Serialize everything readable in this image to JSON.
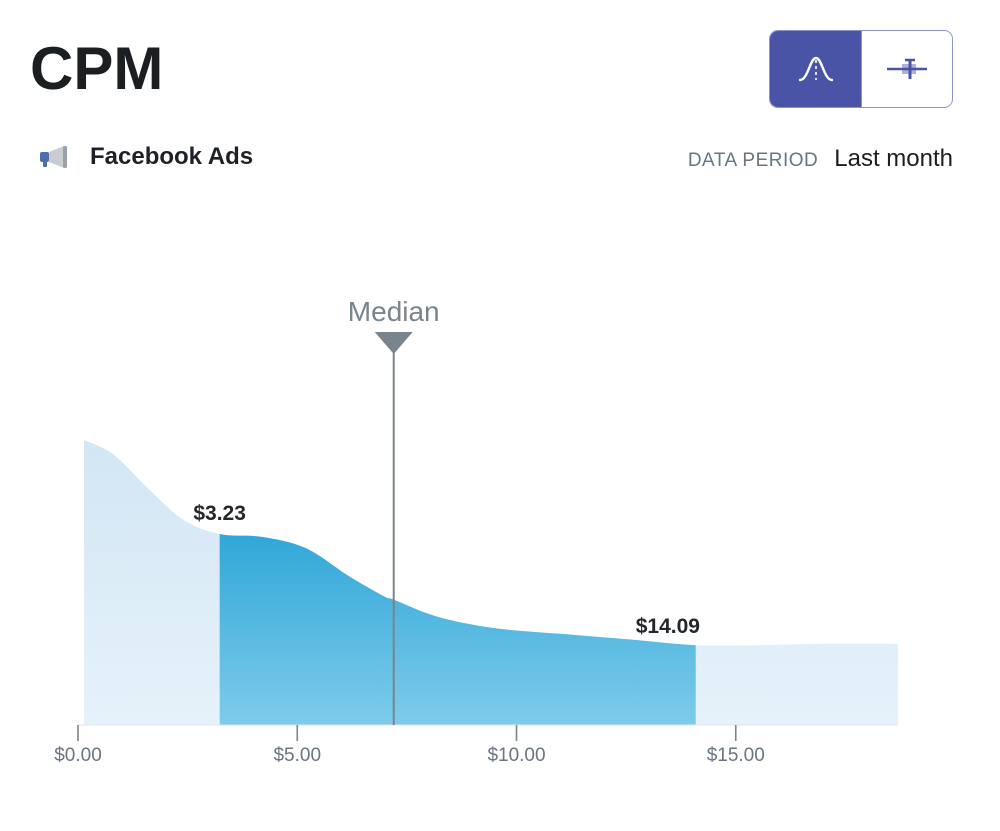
{
  "header": {
    "title": "CPM",
    "view_toggle": {
      "distribution_icon": "distribution-curve-icon",
      "range_icon": "range-plot-icon",
      "active": "distribution"
    }
  },
  "source": {
    "icon": "megaphone-icon",
    "label": "Facebook Ads"
  },
  "data_period": {
    "label": "DATA PERIOD",
    "value": "Last month"
  },
  "colors": {
    "accent": "#4a54a6",
    "band_top": "#0a96cf",
    "band_bottom": "#7ecbea",
    "tail_fill": "#d8eaf6",
    "median_line": "#7a848c"
  },
  "chart_data": {
    "type": "area",
    "title": "",
    "xlabel": "",
    "ylabel": "",
    "x_unit": "$",
    "xlim": [
      0,
      18.7
    ],
    "x_ticks": [
      {
        "value": 0,
        "label": "$0.00"
      },
      {
        "value": 5,
        "label": "$5.00"
      },
      {
        "value": 10,
        "label": "$10.00"
      },
      {
        "value": 15,
        "label": "$15.00"
      }
    ],
    "distribution": {
      "x": [
        0,
        0.8,
        1.6,
        2.4,
        3.23,
        4.2,
        5.2,
        6.2,
        7.0,
        7.2,
        8.2,
        9.5,
        11.0,
        12.6,
        14.09,
        15.5,
        17.0,
        18.7
      ],
      "density": [
        1.0,
        0.95,
        0.83,
        0.72,
        0.67,
        0.66,
        0.62,
        0.52,
        0.45,
        0.44,
        0.38,
        0.34,
        0.32,
        0.3,
        0.28,
        0.28,
        0.285,
        0.285
      ]
    },
    "band": {
      "low": 3.23,
      "high": 14.09,
      "low_label": "$3.23",
      "high_label": "$14.09"
    },
    "median": {
      "value": 7.2,
      "label": "Median"
    },
    "grid": false,
    "legend": "none"
  }
}
